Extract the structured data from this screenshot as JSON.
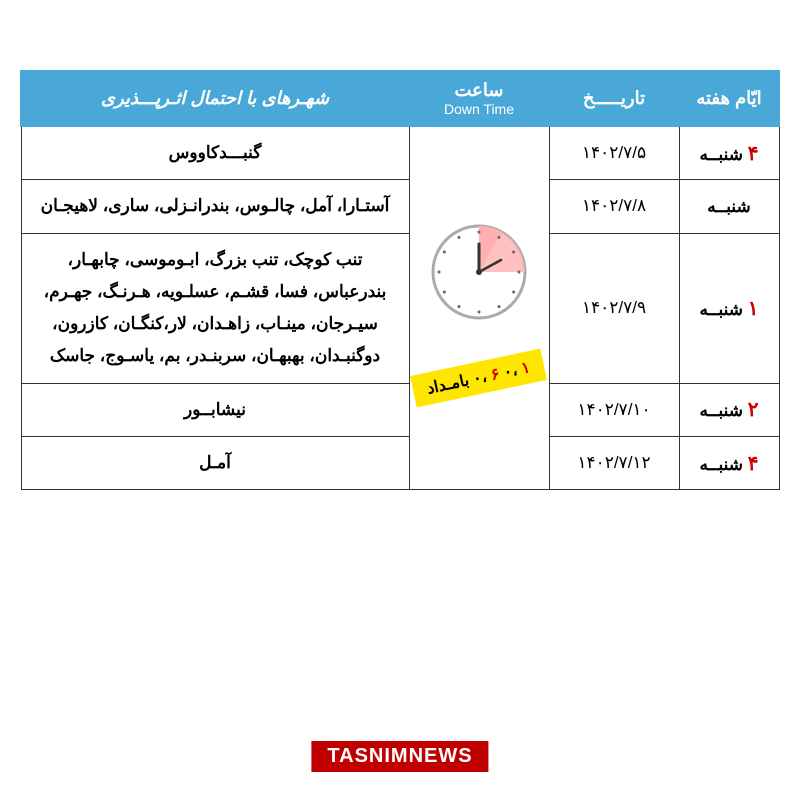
{
  "header": {
    "day": "ایّام هفته",
    "date": "تاریـــــخ",
    "time_fa": "ساعت",
    "time_en": "Down Time",
    "cities": "شهـرهای با احتمال اثـرپـــذیری"
  },
  "time_label": {
    "t1": "۱",
    "sep1": " ،۰ ",
    "t2": "۶",
    "sep2": " ،۰ ",
    "word": "بامـداد"
  },
  "rows": [
    {
      "day_num": "۴",
      "day_word": "شنبــه",
      "date": "۱۴۰۲/۷/۵",
      "cities": "گنبـــدکاووس"
    },
    {
      "day_num": "",
      "day_word": "شنبــه",
      "date": "۱۴۰۲/۷/۸",
      "cities": "آستـارا، آمل، چالـوس، بندرانـزلی، ساری، لاهیجـان"
    },
    {
      "day_num": "۱",
      "day_word": "شنبــه",
      "date": "۱۴۰۲/۷/۹",
      "cities": "تنب کوچک، تنب بزرگ، ابـوموسی، چابهـار، بندرعباس، فسا، قشـم، عسلـویه، هـرنـگ، جهـرم، سیـرجان، مینـاب، زاهـدان، لار،کنگـان، کازرون، دوگنبـدان، بهبهـان، سربنـدر، بم، یاسـوج، جاسک"
    },
    {
      "day_num": "۲",
      "day_word": "شنبــه",
      "date": "۱۴۰۲/۷/۱۰",
      "cities": "نیشابــور"
    },
    {
      "day_num": "۴",
      "day_word": "شنبــه",
      "date": "۱۴۰۲/۷/۱۲",
      "cities": "آمـل"
    }
  ],
  "watermark": "TASNIMNEWS",
  "colors": {
    "header_bg": "#4aa8d8",
    "header_fg": "#ffffff",
    "accent_red": "#d00000",
    "yellow": "#ffe600",
    "clock_shade": "#ffb0b0",
    "border": "#333333"
  }
}
